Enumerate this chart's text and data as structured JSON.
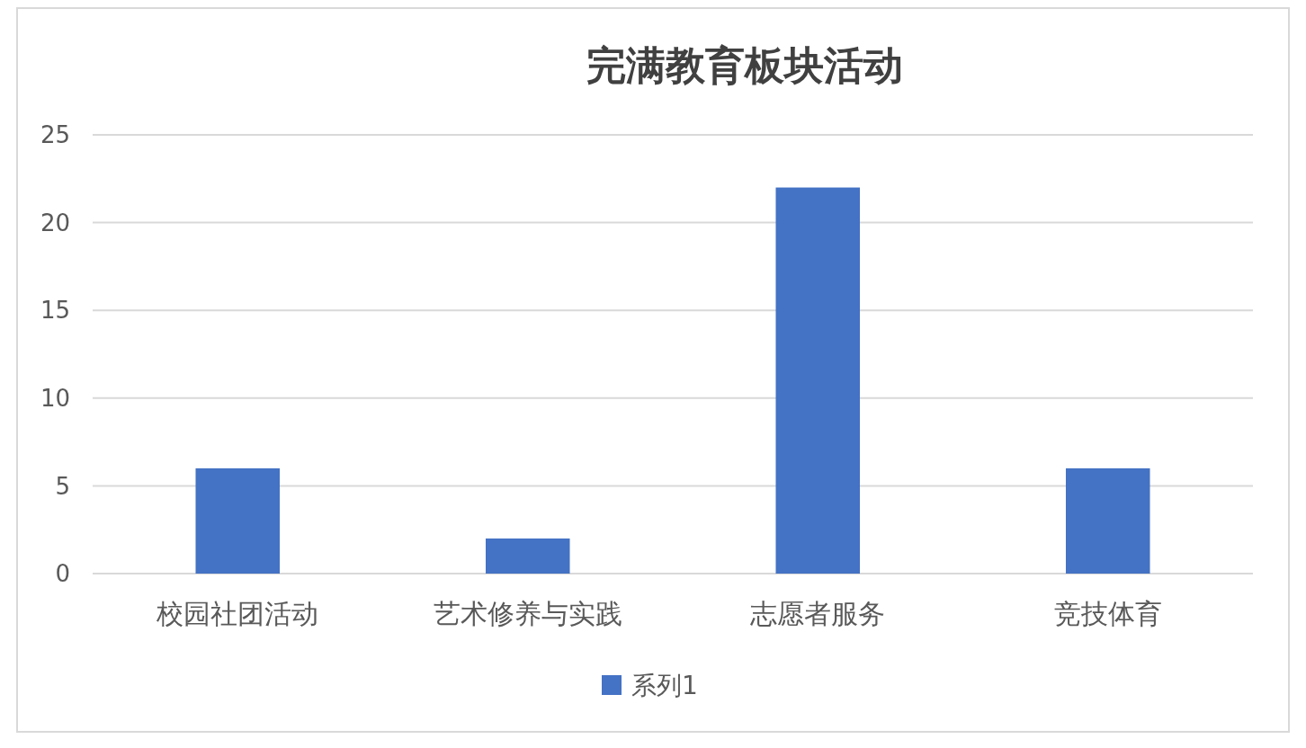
{
  "chart_data": {
    "type": "bar",
    "title": "完满教育板块活动",
    "categories": [
      "校园社团活动",
      "艺术修养与实践",
      "志愿者服务",
      "竞技体育"
    ],
    "series": [
      {
        "name": "系列1",
        "color": "#4472c4",
        "values": [
          6,
          2,
          22,
          6
        ]
      }
    ],
    "ylim": [
      0,
      25
    ],
    "yticks": [
      0,
      5,
      10,
      15,
      20,
      25
    ],
    "grid": "y",
    "legend": "bottom"
  }
}
